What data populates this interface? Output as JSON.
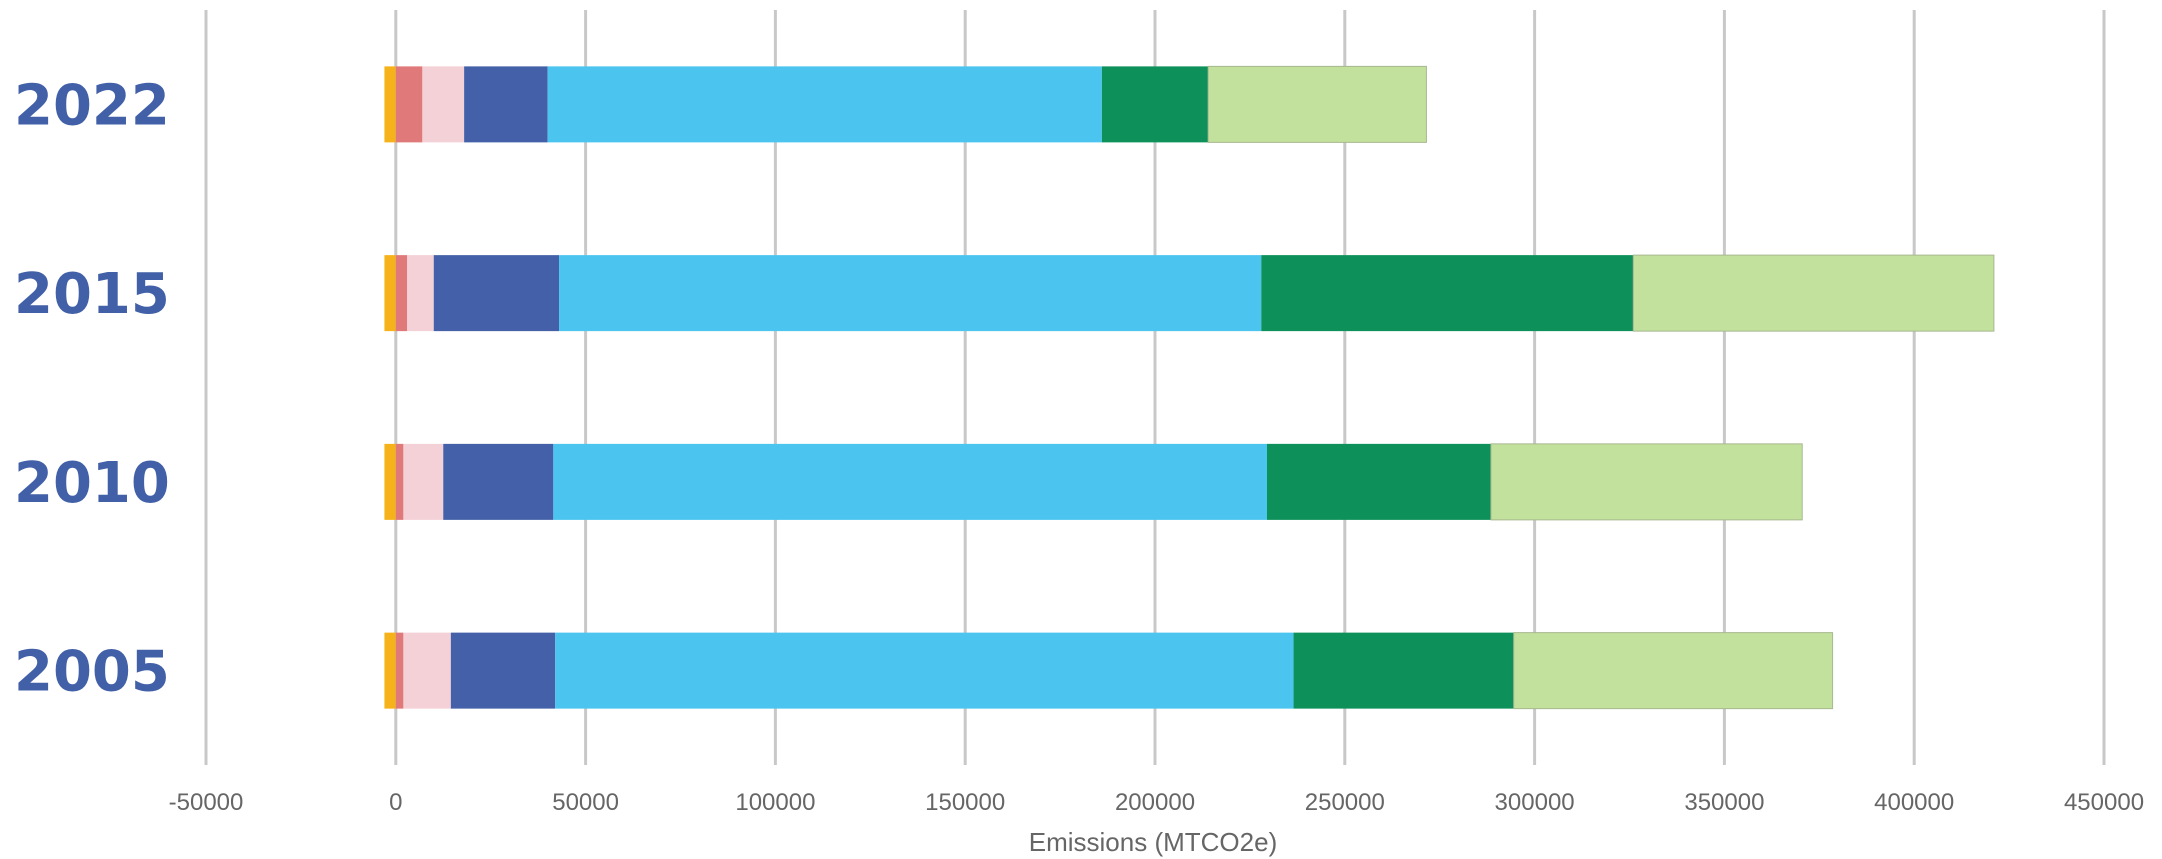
{
  "chart_data": {
    "type": "bar",
    "orientation": "horizontal",
    "stacked": true,
    "categories": [
      "2022",
      "2015",
      "2010",
      "2005"
    ],
    "xlabel": "Emissions (MTCO2e)",
    "xlim": [
      -50000,
      450000
    ],
    "xticks": [
      -50000,
      0,
      50000,
      100000,
      150000,
      200000,
      250000,
      300000,
      350000,
      400000,
      450000
    ],
    "grid": true,
    "series": [
      {
        "color": "#f6b21a",
        "values": [
          -3000,
          -3000,
          -3000,
          -3000
        ]
      },
      {
        "color": "#e07a7a",
        "values": [
          7000,
          3000,
          2000,
          2000
        ]
      },
      {
        "color": "#f4d1d6",
        "values": [
          11000,
          7000,
          10500,
          12500
        ]
      },
      {
        "color": "#4460a8",
        "values": [
          22000,
          33000,
          29000,
          27500
        ]
      },
      {
        "color": "#4bc5f0",
        "values": [
          146000,
          185000,
          188000,
          194500
        ]
      },
      {
        "color": "#0d905a",
        "values": [
          28000,
          98000,
          59000,
          58000
        ]
      },
      {
        "color": "#c2e19c",
        "values": [
          57500,
          95000,
          82000,
          84000
        ]
      }
    ]
  }
}
